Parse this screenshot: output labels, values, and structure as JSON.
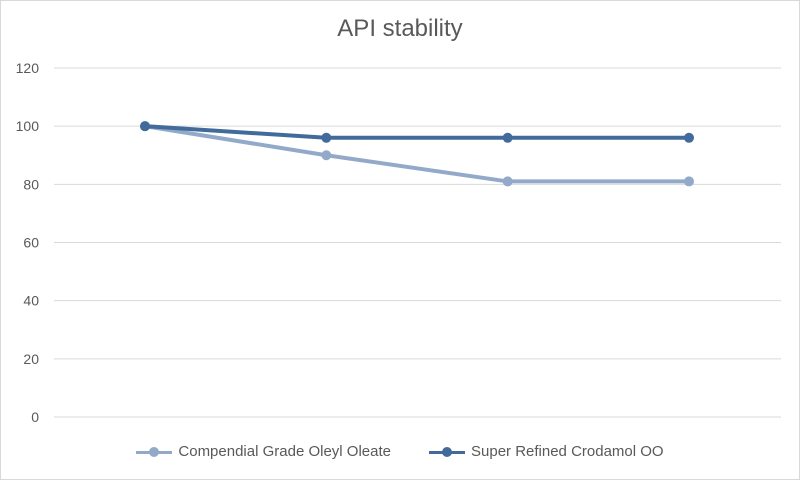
{
  "chart_data": {
    "type": "line",
    "title": "API stability",
    "xlabel": "",
    "ylabel": "",
    "ylim": [
      0,
      120
    ],
    "yticks": [
      0,
      20,
      40,
      60,
      80,
      100,
      120
    ],
    "grid": true,
    "legend_position": "bottom",
    "x": [
      1,
      2,
      3,
      4
    ],
    "series": [
      {
        "name": "Compendial Grade Oleyl Oleate",
        "color": "#93a9c9",
        "values": [
          100,
          90,
          81,
          81
        ]
      },
      {
        "name": "Super Refined Crodamol OO",
        "color": "#426b9b",
        "values": [
          100,
          96,
          96,
          96
        ]
      }
    ]
  }
}
